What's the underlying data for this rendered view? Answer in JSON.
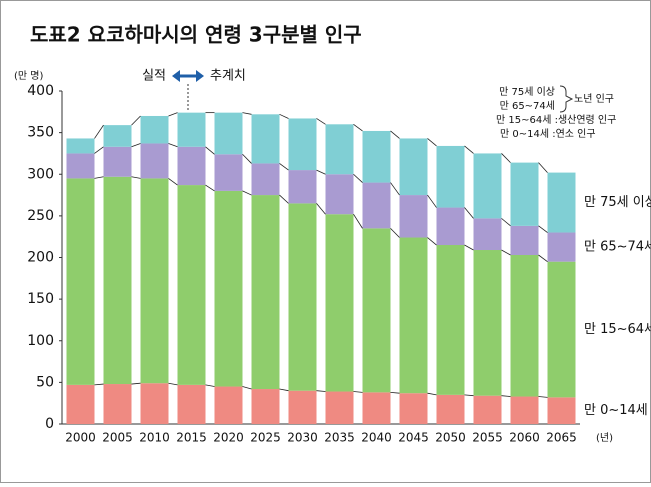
{
  "chart_data": {
    "type": "stacked_bar",
    "title": "도표2 요코하마시의 연령 3구분별 인구",
    "y_label": "(만 명)",
    "x_label": "(년)",
    "annotations": {
      "actual": "실적",
      "projection": "추계치"
    },
    "legend_notes": {
      "elderly_75": "만 75세 이상",
      "elderly_65": "만 65~74세",
      "elderly_group": "노년 인구",
      "working": "만 15~64세 :생산연령 인구",
      "youth": "만 0~14세 :연소 인구"
    },
    "categories": [
      "2000",
      "2005",
      "2010",
      "2015",
      "2020",
      "2025",
      "2030",
      "2035",
      "2040",
      "2045",
      "2050",
      "2055",
      "2060",
      "2065"
    ],
    "series": [
      {
        "name": "만 0~14세",
        "color": "#ef8a82",
        "values": [
          47,
          48,
          49,
          47,
          45,
          42,
          40,
          39,
          38,
          37,
          35,
          34,
          33,
          32
        ]
      },
      {
        "name": "만 15~64세",
        "color": "#8fcd6c",
        "values": [
          248,
          249,
          246,
          240,
          235,
          233,
          225,
          213,
          197,
          187,
          180,
          175,
          170,
          163
        ]
      },
      {
        "name": "만 65~74세",
        "color": "#a99bd1",
        "values": [
          30,
          36,
          42,
          46,
          44,
          38,
          40,
          48,
          55,
          51,
          45,
          38,
          35,
          35
        ]
      },
      {
        "name": "만 75세 이상",
        "color": "#80cfd4",
        "values": [
          18,
          26,
          33,
          41,
          50,
          59,
          62,
          60,
          62,
          68,
          74,
          78,
          76,
          72
        ]
      }
    ],
    "ylim": [
      0,
      400
    ],
    "yticks": [
      0,
      50,
      100,
      150,
      200,
      250,
      300,
      350,
      400
    ],
    "grid": false
  }
}
